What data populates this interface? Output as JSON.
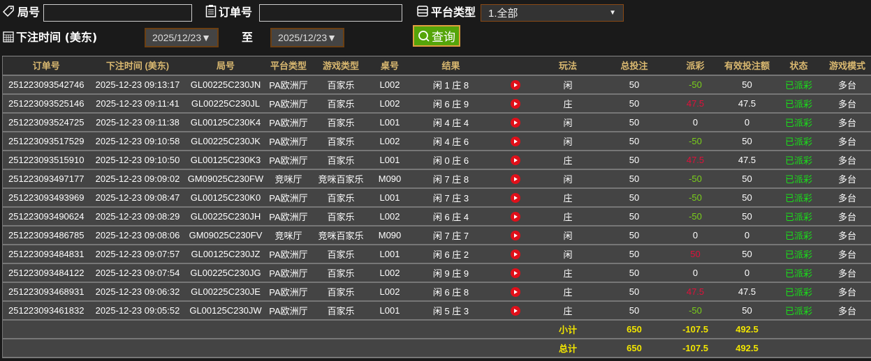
{
  "filters": {
    "round_label": "局号",
    "round_value": "",
    "order_label": "订单号",
    "order_value": "",
    "platform_label": "平台类型",
    "platform_value": "1.全部",
    "time_label": "下注时间 (美东)",
    "date_from": "2025/12/23▼",
    "to_label": "至",
    "date_to": "2025/12/23▼",
    "query_label": "查询"
  },
  "colors": {
    "positive_payout": "#e0103a",
    "negative_payout": "#7ad01a",
    "status": "#19e019",
    "summary": "#f2e600",
    "query_button": "#55a50a"
  },
  "table": {
    "headers": [
      "订单号",
      "下注时间 (美东)",
      "局号",
      "平台类型",
      "游戏类型",
      "桌号",
      "结果",
      "",
      "玩法",
      "总投注",
      "派彩",
      "有效投注额",
      "状态",
      "游戏模式"
    ],
    "rows": [
      [
        "251223093542746",
        "2025-12-23 09:13:17",
        "GL00225C230JN",
        "PA欧洲厅",
        "百家乐",
        "L002",
        "闲 1 庄 8",
        "闲",
        "50",
        "-50",
        "50",
        "已派彩",
        "多台"
      ],
      [
        "251223093525146",
        "2025-12-23 09:11:41",
        "GL00225C230JL",
        "PA欧洲厅",
        "百家乐",
        "L002",
        "闲 6 庄 9",
        "庄",
        "50",
        "47.5",
        "47.5",
        "已派彩",
        "多台"
      ],
      [
        "251223093524725",
        "2025-12-23 09:11:38",
        "GL00125C230K4",
        "PA欧洲厅",
        "百家乐",
        "L001",
        "闲 4 庄 4",
        "闲",
        "50",
        "0",
        "0",
        "已派彩",
        "多台"
      ],
      [
        "251223093517529",
        "2025-12-23 09:10:58",
        "GL00225C230JK",
        "PA欧洲厅",
        "百家乐",
        "L002",
        "闲 4 庄 6",
        "闲",
        "50",
        "-50",
        "50",
        "已派彩",
        "多台"
      ],
      [
        "251223093515910",
        "2025-12-23 09:10:50",
        "GL00125C230K3",
        "PA欧洲厅",
        "百家乐",
        "L001",
        "闲 0 庄 6",
        "庄",
        "50",
        "47.5",
        "47.5",
        "已派彩",
        "多台"
      ],
      [
        "251223093497177",
        "2025-12-23 09:09:02",
        "GM09025C230FW",
        "竞咪厅",
        "竞咪百家乐",
        "M090",
        "闲 7 庄 8",
        "闲",
        "50",
        "-50",
        "50",
        "已派彩",
        "多台"
      ],
      [
        "251223093493969",
        "2025-12-23 09:08:47",
        "GL00125C230K0",
        "PA欧洲厅",
        "百家乐",
        "L001",
        "闲 7 庄 3",
        "庄",
        "50",
        "-50",
        "50",
        "已派彩",
        "多台"
      ],
      [
        "251223093490624",
        "2025-12-23 09:08:29",
        "GL00225C230JH",
        "PA欧洲厅",
        "百家乐",
        "L002",
        "闲 6 庄 4",
        "庄",
        "50",
        "-50",
        "50",
        "已派彩",
        "多台"
      ],
      [
        "251223093486785",
        "2025-12-23 09:08:06",
        "GM09025C230FV",
        "竞咪厅",
        "竞咪百家乐",
        "M090",
        "闲 7 庄 7",
        "闲",
        "50",
        "0",
        "0",
        "已派彩",
        "多台"
      ],
      [
        "251223093484831",
        "2025-12-23 09:07:57",
        "GL00125C230JZ",
        "PA欧洲厅",
        "百家乐",
        "L001",
        "闲 6 庄 2",
        "闲",
        "50",
        "50",
        "50",
        "已派彩",
        "多台"
      ],
      [
        "251223093484122",
        "2025-12-23 09:07:54",
        "GL00225C230JG",
        "PA欧洲厅",
        "百家乐",
        "L002",
        "闲 9 庄 9",
        "庄",
        "50",
        "0",
        "0",
        "已派彩",
        "多台"
      ],
      [
        "251223093468931",
        "2025-12-23 09:06:32",
        "GL00225C230JE",
        "PA欧洲厅",
        "百家乐",
        "L002",
        "闲 6 庄 8",
        "庄",
        "50",
        "47.5",
        "47.5",
        "已派彩",
        "多台"
      ],
      [
        "251223093461832",
        "2025-12-23 09:05:52",
        "GL00125C230JW",
        "PA欧洲厅",
        "百家乐",
        "L001",
        "闲 5 庄 3",
        "庄",
        "50",
        "-50",
        "50",
        "已派彩",
        "多台"
      ]
    ],
    "subtotal": {
      "label": "小计",
      "total_bet": "650",
      "payout": "-107.5",
      "valid_bet": "492.5"
    },
    "total": {
      "label": "总计",
      "total_bet": "650",
      "payout": "-107.5",
      "valid_bet": "492.5"
    }
  }
}
